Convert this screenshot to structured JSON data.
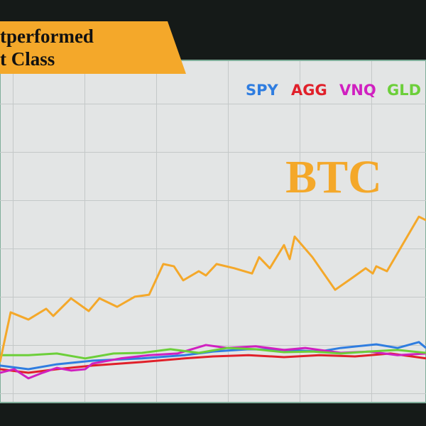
{
  "chart_data": {
    "type": "line",
    "title_lines": [
      "tperformed",
      "t Class"
    ],
    "xlim": [
      0,
      600
    ],
    "ylim": [
      0,
      100
    ],
    "grid": true,
    "series": [
      {
        "name": "BTC",
        "color": "#f4a82a",
        "x": [
          0,
          15,
          40,
          65,
          75,
          100,
          125,
          140,
          165,
          190,
          210,
          230,
          245,
          258,
          280,
          290,
          305,
          330,
          355,
          365,
          380,
          400,
          408,
          415,
          440,
          472,
          495,
          515,
          525,
          530,
          545,
          590,
          600
        ],
        "values": [
          10.9,
          26.1,
          23.9,
          27.2,
          25,
          30.4,
          26.5,
          30.4,
          27.8,
          30.9,
          31.5,
          40.9,
          40.2,
          35.9,
          38.7,
          37.4,
          40.9,
          39.6,
          38,
          43,
          39.6,
          46.7,
          42.4,
          49.3,
          43,
          33,
          36.5,
          39.6,
          38,
          40.2,
          38.7,
          55.4,
          54.3
        ]
      },
      {
        "name": "SPY",
        "color": "#2f7de0",
        "x": [
          0,
          40,
          80,
          130,
          200,
          260,
          300,
          350,
          400,
          450,
          480,
          530,
          560,
          590,
          600
        ],
        "values": [
          9.8,
          8.7,
          10.2,
          11.3,
          12,
          13,
          14.1,
          14.8,
          14.6,
          14.1,
          15.2,
          16.3,
          15.2,
          17,
          15.2
        ]
      },
      {
        "name": "AGG",
        "color": "#e0202a",
        "x": [
          0,
          40,
          80,
          130,
          200,
          260,
          300,
          350,
          400,
          450,
          500,
          550,
          600
        ],
        "values": [
          8.7,
          7.6,
          8.7,
          9.8,
          10.9,
          12,
          12.6,
          13,
          12.4,
          13,
          12.6,
          13.5,
          12
        ]
      },
      {
        "name": "VNQ",
        "color": "#d020c0",
        "x": [
          0,
          20,
          40,
          60,
          80,
          100,
          120,
          130,
          170,
          210,
          250,
          290,
          320,
          360,
          400,
          430,
          480,
          520,
          560,
          600
        ],
        "values": [
          7.6,
          8.7,
          5.9,
          7.6,
          9.1,
          8.3,
          8.7,
          10.4,
          12,
          13,
          13.5,
          16.1,
          15.2,
          15.7,
          14.6,
          15.2,
          13.7,
          14.1,
          13,
          13.5
        ]
      },
      {
        "name": "GLD",
        "color": "#6ccf3a",
        "x": [
          0,
          40,
          80,
          120,
          160,
          200,
          240,
          280,
          320,
          360,
          400,
          440,
          480,
          520,
          560,
          600
        ],
        "values": [
          13,
          13,
          13.5,
          12,
          13.5,
          13.7,
          14.8,
          13.7,
          15.2,
          14.8,
          13.9,
          14.1,
          13.5,
          14.1,
          14.6,
          13.7
        ]
      }
    ]
  }
}
